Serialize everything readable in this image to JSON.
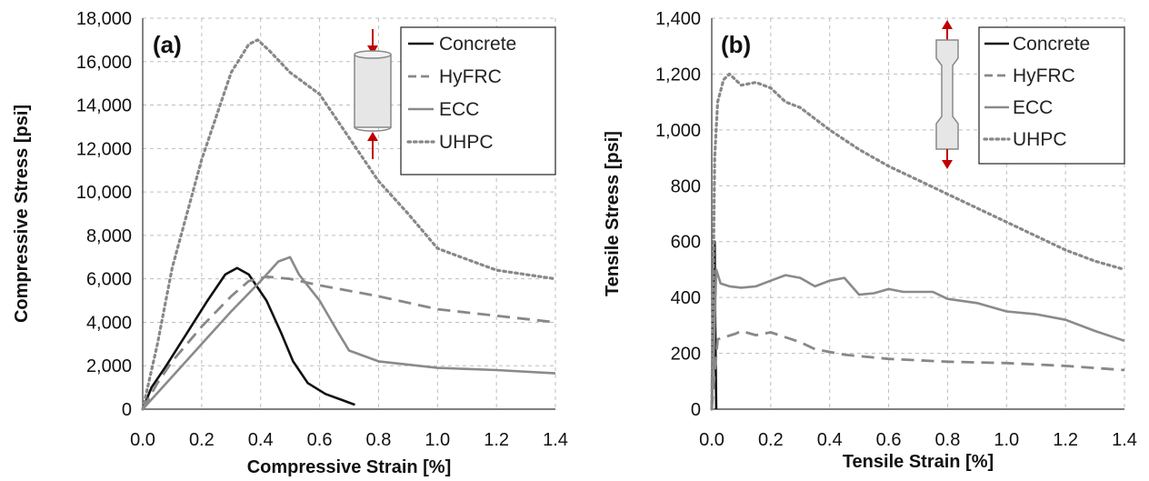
{
  "chart_data": [
    {
      "type": "line",
      "panel_label": "(a)",
      "xlabel": "Compressive Strain [%]",
      "ylabel": "Compressive Stress [psi]",
      "xlim": [
        0,
        1.4
      ],
      "ylim": [
        0,
        18000
      ],
      "x_ticks": [
        "0.0",
        "0.2",
        "0.4",
        "0.6",
        "0.8",
        "1.0",
        "1.2",
        "1.4"
      ],
      "y_ticks": [
        "0",
        "2,000",
        "4,000",
        "6,000",
        "8,000",
        "10,000",
        "12,000",
        "14,000",
        "16,000",
        "18,000"
      ],
      "grid": true,
      "legend_position": "top-right",
      "series": [
        {
          "name": "Concrete",
          "style": "solid",
          "color": "#111111",
          "points": [
            [
              0,
              0
            ],
            [
              0.03,
              1000
            ],
            [
              0.08,
              2000
            ],
            [
              0.15,
              3500
            ],
            [
              0.22,
              5000
            ],
            [
              0.28,
              6200
            ],
            [
              0.32,
              6500
            ],
            [
              0.36,
              6200
            ],
            [
              0.42,
              5000
            ],
            [
              0.47,
              3500
            ],
            [
              0.51,
              2200
            ],
            [
              0.56,
              1200
            ],
            [
              0.62,
              700
            ],
            [
              0.68,
              400
            ],
            [
              0.72,
              200
            ]
          ]
        },
        {
          "name": "HyFRC",
          "style": "dashed",
          "color": "#888888",
          "points": [
            [
              0,
              0
            ],
            [
              0.05,
              1200
            ],
            [
              0.1,
              2200
            ],
            [
              0.2,
              3800
            ],
            [
              0.3,
              5200
            ],
            [
              0.36,
              5900
            ],
            [
              0.42,
              6100
            ],
            [
              0.5,
              6000
            ],
            [
              0.6,
              5700
            ],
            [
              0.8,
              5200
            ],
            [
              1.0,
              4600
            ],
            [
              1.2,
              4300
            ],
            [
              1.4,
              4000
            ]
          ]
        },
        {
          "name": "ECC",
          "style": "solid",
          "color": "#8a8a8a",
          "points": [
            [
              0,
              0
            ],
            [
              0.1,
              1500
            ],
            [
              0.2,
              3000
            ],
            [
              0.3,
              4500
            ],
            [
              0.4,
              5900
            ],
            [
              0.46,
              6800
            ],
            [
              0.5,
              7000
            ],
            [
              0.53,
              6200
            ],
            [
              0.6,
              5000
            ],
            [
              0.66,
              3600
            ],
            [
              0.7,
              2700
            ],
            [
              0.8,
              2200
            ],
            [
              1.0,
              1900
            ],
            [
              1.2,
              1800
            ],
            [
              1.4,
              1650
            ]
          ]
        },
        {
          "name": "UHPC",
          "style": "dotted",
          "color": "#888888",
          "points": [
            [
              0,
              0
            ],
            [
              0.05,
              3000
            ],
            [
              0.1,
              6500
            ],
            [
              0.2,
              11500
            ],
            [
              0.3,
              15500
            ],
            [
              0.36,
              16800
            ],
            [
              0.39,
              17000
            ],
            [
              0.43,
              16500
            ],
            [
              0.5,
              15500
            ],
            [
              0.6,
              14500
            ],
            [
              0.7,
              12500
            ],
            [
              0.8,
              10500
            ],
            [
              0.9,
              9000
            ],
            [
              1.0,
              7400
            ],
            [
              1.1,
              6900
            ],
            [
              1.2,
              6400
            ],
            [
              1.3,
              6200
            ],
            [
              1.4,
              6000
            ]
          ]
        }
      ]
    },
    {
      "type": "line",
      "panel_label": "(b)",
      "xlabel": "Tensile Strain [%]",
      "ylabel": "Tensile Stress [psi]",
      "xlim": [
        0,
        1.4
      ],
      "ylim": [
        0,
        1400
      ],
      "x_ticks": [
        "0.0",
        "0.2",
        "0.4",
        "0.6",
        "0.8",
        "1.0",
        "1.2",
        "1.4"
      ],
      "y_ticks": [
        "0",
        "200",
        "400",
        "600",
        "800",
        "1,000",
        "1,200",
        "1,400"
      ],
      "grid": true,
      "legend_position": "top-right",
      "series": [
        {
          "name": "Concrete",
          "style": "solid",
          "color": "#111111",
          "points": [
            [
              0,
              0
            ],
            [
              0.005,
              300
            ],
            [
              0.01,
              600
            ],
            [
              0.012,
              300
            ],
            [
              0.015,
              0
            ]
          ]
        },
        {
          "name": "HyFRC",
          "style": "dashed",
          "color": "#888888",
          "points": [
            [
              0,
              0
            ],
            [
              0.01,
              130
            ],
            [
              0.02,
              250
            ],
            [
              0.05,
              260
            ],
            [
              0.08,
              270
            ],
            [
              0.1,
              280
            ],
            [
              0.15,
              265
            ],
            [
              0.2,
              275
            ],
            [
              0.3,
              240
            ],
            [
              0.35,
              215
            ],
            [
              0.45,
              195
            ],
            [
              0.6,
              180
            ],
            [
              0.8,
              170
            ],
            [
              1.0,
              165
            ],
            [
              1.2,
              155
            ],
            [
              1.4,
              140
            ]
          ]
        },
        {
          "name": "ECC",
          "style": "solid",
          "color": "#8a8a8a",
          "points": [
            [
              0,
              0
            ],
            [
              0.01,
              300
            ],
            [
              0.015,
              500
            ],
            [
              0.03,
              450
            ],
            [
              0.06,
              440
            ],
            [
              0.1,
              435
            ],
            [
              0.15,
              440
            ],
            [
              0.2,
              460
            ],
            [
              0.25,
              480
            ],
            [
              0.3,
              470
            ],
            [
              0.35,
              440
            ],
            [
              0.4,
              460
            ],
            [
              0.45,
              470
            ],
            [
              0.5,
              410
            ],
            [
              0.55,
              415
            ],
            [
              0.6,
              430
            ],
            [
              0.65,
              420
            ],
            [
              0.75,
              420
            ],
            [
              0.8,
              395
            ],
            [
              0.9,
              380
            ],
            [
              1.0,
              350
            ],
            [
              1.1,
              340
            ],
            [
              1.2,
              320
            ],
            [
              1.3,
              280
            ],
            [
              1.4,
              245
            ]
          ]
        },
        {
          "name": "UHPC",
          "style": "dotted",
          "color": "#888888",
          "points": [
            [
              0,
              0
            ],
            [
              0.01,
              900
            ],
            [
              0.02,
              1100
            ],
            [
              0.04,
              1180
            ],
            [
              0.06,
              1200
            ],
            [
              0.1,
              1160
            ],
            [
              0.15,
              1170
            ],
            [
              0.2,
              1150
            ],
            [
              0.25,
              1100
            ],
            [
              0.3,
              1080
            ],
            [
              0.4,
              1000
            ],
            [
              0.5,
              930
            ],
            [
              0.6,
              870
            ],
            [
              0.7,
              820
            ],
            [
              0.8,
              770
            ],
            [
              0.9,
              720
            ],
            [
              1.0,
              670
            ],
            [
              1.1,
              620
            ],
            [
              1.2,
              570
            ],
            [
              1.3,
              530
            ],
            [
              1.4,
              500
            ]
          ]
        }
      ]
    }
  ]
}
